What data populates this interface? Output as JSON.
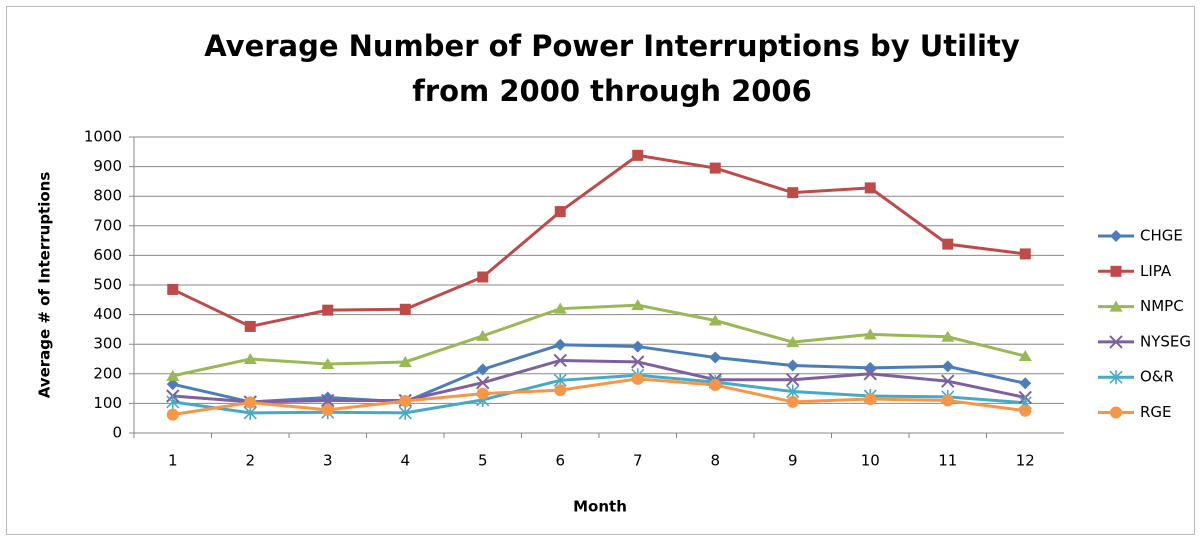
{
  "chart_data": {
    "type": "line",
    "title": [
      "Average Number of Power Interruptions by Utility",
      "from 2000 through 2006"
    ],
    "x_label": "Month",
    "y_label": "Average # of Interruptions",
    "categories": [
      "1",
      "2",
      "3",
      "4",
      "5",
      "6",
      "7",
      "8",
      "9",
      "10",
      "11",
      "12"
    ],
    "ylim": [
      0,
      1000
    ],
    "yticks": [
      0,
      100,
      200,
      300,
      400,
      500,
      600,
      700,
      800,
      900,
      1000
    ],
    "grid": true,
    "legend": "right",
    "series": [
      {
        "name": "CHGE",
        "color": "#4a7ebb",
        "marker": "diamond",
        "values": [
          165,
          105,
          120,
          105,
          215,
          298,
          292,
          255,
          228,
          220,
          225,
          168
        ]
      },
      {
        "name": "LIPA",
        "color": "#be4b48",
        "marker": "square",
        "values": [
          485,
          360,
          415,
          418,
          527,
          748,
          938,
          895,
          812,
          828,
          638,
          605
        ]
      },
      {
        "name": "NMPC",
        "color": "#98b954",
        "marker": "triangle",
        "values": [
          193,
          250,
          233,
          240,
          328,
          420,
          432,
          380,
          307,
          333,
          325,
          260
        ]
      },
      {
        "name": "NYSEG",
        "color": "#7d60a0",
        "marker": "x",
        "values": [
          125,
          105,
          110,
          110,
          170,
          245,
          240,
          180,
          180,
          200,
          175,
          120
        ]
      },
      {
        "name": "O&R",
        "color": "#46aac5",
        "marker": "star",
        "values": [
          105,
          68,
          70,
          68,
          112,
          178,
          195,
          172,
          140,
          125,
          122,
          102
        ]
      },
      {
        "name": "RGE",
        "color": "#f79646",
        "marker": "circle",
        "values": [
          62,
          103,
          78,
          108,
          133,
          145,
          183,
          162,
          105,
          115,
          110,
          75
        ]
      }
    ]
  }
}
